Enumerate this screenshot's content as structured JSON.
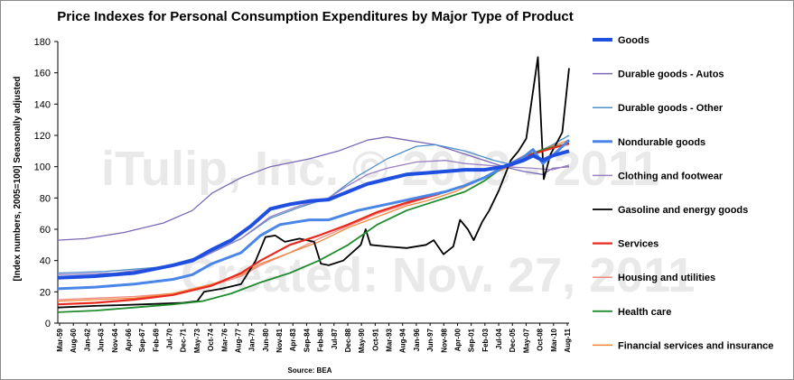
{
  "watermark": {
    "line1": "iTulip, Inc. © 2003 - 2011",
    "line2": "Created: Nov. 27, 2011"
  },
  "chart_data": {
    "type": "line",
    "title": "Price Indexes for Personal Consumption Expenditures by Major Type of Product",
    "ylabel": "[Index numbers, 2005=100] Seasonally adjusted",
    "xlabel": "",
    "source": "Source: BEA",
    "ylim": [
      0,
      180
    ],
    "yticks": [
      0,
      20,
      40,
      60,
      80,
      100,
      120,
      140,
      160,
      180
    ],
    "xlim": [
      1959.17,
      2011.7
    ],
    "xtick_labels": [
      "Mar-59",
      "Aug-60",
      "Jan-62",
      "Jun-63",
      "Nov-64",
      "Apr-66",
      "Sep-67",
      "Feb-69",
      "Jul-70",
      "Dec-71",
      "May-73",
      "Oct-74",
      "Mar-76",
      "Aug-77",
      "Jan-79",
      "Jun-80",
      "Nov-81",
      "Apr-83",
      "Sep-84",
      "Feb-86",
      "Jul-87",
      "Dec-88",
      "May-90",
      "Oct-91",
      "Mar-93",
      "Aug-94",
      "Jan-96",
      "Jun-97",
      "Nov-98",
      "Apr-00",
      "Sep-01",
      "Feb-03",
      "Jul-04",
      "Dec-05",
      "May-07",
      "Oct-08",
      "Mar-10",
      "Aug-11"
    ],
    "grid": false,
    "legend_position": "right",
    "series": [
      {
        "name": "Goods",
        "color": "#1f4fe0",
        "width": 4,
        "points": [
          [
            1959.17,
            29
          ],
          [
            1963,
            30
          ],
          [
            1967,
            32
          ],
          [
            1971,
            37
          ],
          [
            1973,
            40
          ],
          [
            1975,
            47
          ],
          [
            1977,
            53
          ],
          [
            1979,
            62
          ],
          [
            1981,
            73
          ],
          [
            1983,
            76
          ],
          [
            1985,
            78
          ],
          [
            1987,
            79
          ],
          [
            1989,
            84
          ],
          [
            1991,
            89
          ],
          [
            1993,
            92
          ],
          [
            1995,
            95
          ],
          [
            1997,
            96
          ],
          [
            1999,
            97
          ],
          [
            2001,
            98
          ],
          [
            2003,
            98
          ],
          [
            2005,
            100
          ],
          [
            2007,
            104
          ],
          [
            2008,
            107
          ],
          [
            2009,
            104
          ],
          [
            2010,
            107
          ],
          [
            2011.7,
            110
          ]
        ]
      },
      {
        "name": "Durable goods - Autos",
        "color": "#7b68b5",
        "width": 1.3,
        "points": [
          [
            1959.17,
            53
          ],
          [
            1962,
            54
          ],
          [
            1966,
            58
          ],
          [
            1970,
            64
          ],
          [
            1973,
            72
          ],
          [
            1975,
            83
          ],
          [
            1978,
            93
          ],
          [
            1981,
            100
          ],
          [
            1985,
            105
          ],
          [
            1988,
            110
          ],
          [
            1991,
            117
          ],
          [
            1993,
            119
          ],
          [
            1995,
            117
          ],
          [
            1998,
            114
          ],
          [
            2001,
            108
          ],
          [
            2003,
            104
          ],
          [
            2005,
            100
          ],
          [
            2007,
            97
          ],
          [
            2009,
            95
          ],
          [
            2010,
            99
          ],
          [
            2011.7,
            100
          ]
        ]
      },
      {
        "name": "Durable goods - Other",
        "color": "#4f8fc8",
        "width": 1.3,
        "points": [
          [
            1959.17,
            32
          ],
          [
            1964,
            33
          ],
          [
            1970,
            36
          ],
          [
            1974,
            43
          ],
          [
            1978,
            54
          ],
          [
            1981,
            67
          ],
          [
            1984,
            74
          ],
          [
            1987,
            80
          ],
          [
            1990,
            94
          ],
          [
            1993,
            105
          ],
          [
            1996,
            113
          ],
          [
            1998,
            114
          ],
          [
            2001,
            110
          ],
          [
            2004,
            104
          ],
          [
            2006,
            101
          ],
          [
            2008,
            108
          ],
          [
            2010,
            114
          ],
          [
            2011.7,
            120
          ]
        ]
      },
      {
        "name": "Nondurable goods",
        "color": "#4a86e8",
        "width": 3,
        "points": [
          [
            1959.17,
            22
          ],
          [
            1963,
            23
          ],
          [
            1967,
            25
          ],
          [
            1971,
            28
          ],
          [
            1973,
            31
          ],
          [
            1975,
            38
          ],
          [
            1978,
            45
          ],
          [
            1980,
            56
          ],
          [
            1982,
            63
          ],
          [
            1985,
            66
          ],
          [
            1987,
            66
          ],
          [
            1990,
            72
          ],
          [
            1993,
            76
          ],
          [
            1996,
            80
          ],
          [
            1999,
            84
          ],
          [
            2001,
            88
          ],
          [
            2003,
            93
          ],
          [
            2005,
            100
          ],
          [
            2007,
            106
          ],
          [
            2008,
            111
          ],
          [
            2009,
            102
          ],
          [
            2010,
            107
          ],
          [
            2011.7,
            117
          ]
        ]
      },
      {
        "name": "Clothing and footwear",
        "color": "#9a80c4",
        "width": 1.3,
        "points": [
          [
            1959.17,
            31
          ],
          [
            1965,
            32
          ],
          [
            1970,
            36
          ],
          [
            1974,
            42
          ],
          [
            1978,
            54
          ],
          [
            1981,
            68
          ],
          [
            1984,
            75
          ],
          [
            1987,
            80
          ],
          [
            1989,
            88
          ],
          [
            1991,
            95
          ],
          [
            1993,
            99
          ],
          [
            1996,
            103
          ],
          [
            1999,
            104
          ],
          [
            2001,
            102
          ],
          [
            2003,
            101
          ],
          [
            2005,
            100
          ],
          [
            2008,
            99
          ],
          [
            2010,
            98
          ],
          [
            2011.7,
            101
          ]
        ]
      },
      {
        "name": "Gasoline and energy goods",
        "color": "#000000",
        "width": 1.8,
        "points": [
          [
            1959.17,
            10
          ],
          [
            1963,
            11
          ],
          [
            1968,
            12
          ],
          [
            1972,
            13
          ],
          [
            1973.5,
            14
          ],
          [
            1974.2,
            20
          ],
          [
            1976,
            22
          ],
          [
            1978,
            25
          ],
          [
            1979.5,
            40
          ],
          [
            1980.5,
            55
          ],
          [
            1981.5,
            56
          ],
          [
            1982.5,
            52
          ],
          [
            1984,
            54
          ],
          [
            1985.5,
            52
          ],
          [
            1986.2,
            38
          ],
          [
            1987,
            37
          ],
          [
            1988.5,
            40
          ],
          [
            1990.3,
            50
          ],
          [
            1990.8,
            60
          ],
          [
            1991.3,
            50
          ],
          [
            1993,
            49
          ],
          [
            1995,
            48
          ],
          [
            1997,
            50
          ],
          [
            1997.8,
            53
          ],
          [
            1998.8,
            44
          ],
          [
            1999.8,
            49
          ],
          [
            2000.5,
            66
          ],
          [
            2001.3,
            60
          ],
          [
            2001.9,
            53
          ],
          [
            2002.8,
            65
          ],
          [
            2003.5,
            72
          ],
          [
            2004.5,
            85
          ],
          [
            2005.7,
            104
          ],
          [
            2006.5,
            110
          ],
          [
            2007.3,
            118
          ],
          [
            2008.5,
            170
          ],
          [
            2009.1,
            92
          ],
          [
            2009.8,
            108
          ],
          [
            2010.5,
            116
          ],
          [
            2011,
            122
          ],
          [
            2011.7,
            163
          ]
        ]
      },
      {
        "name": "Services",
        "color": "#e8291f",
        "width": 2.2,
        "points": [
          [
            1959.17,
            12
          ],
          [
            1963,
            13
          ],
          [
            1967,
            15
          ],
          [
            1971,
            18
          ],
          [
            1975,
            24
          ],
          [
            1978,
            32
          ],
          [
            1980,
            40
          ],
          [
            1983,
            50
          ],
          [
            1986,
            56
          ],
          [
            1989,
            63
          ],
          [
            1992,
            71
          ],
          [
            1995,
            77
          ],
          [
            1998,
            82
          ],
          [
            2001,
            88
          ],
          [
            2003,
            93
          ],
          [
            2005,
            100
          ],
          [
            2007,
            106
          ],
          [
            2009,
            110
          ],
          [
            2011.7,
            115
          ]
        ]
      },
      {
        "name": "Housing and utilities",
        "color": "#f08a82",
        "width": 1.3,
        "points": [
          [
            1959.17,
            15
          ],
          [
            1963,
            16
          ],
          [
            1967,
            17
          ],
          [
            1971,
            19
          ],
          [
            1975,
            24
          ],
          [
            1978,
            30
          ],
          [
            1980,
            37
          ],
          [
            1983,
            45
          ],
          [
            1986,
            54
          ],
          [
            1989,
            62
          ],
          [
            1992,
            70
          ],
          [
            1995,
            76
          ],
          [
            1998,
            82
          ],
          [
            2001,
            88
          ],
          [
            2003,
            93
          ],
          [
            2005,
            100
          ],
          [
            2007,
            107
          ],
          [
            2009,
            111
          ],
          [
            2011.7,
            114
          ]
        ]
      },
      {
        "name": "Health care",
        "color": "#1f8c2e",
        "width": 1.8,
        "points": [
          [
            1959.17,
            7
          ],
          [
            1963,
            8
          ],
          [
            1967,
            10
          ],
          [
            1971,
            12
          ],
          [
            1974,
            14
          ],
          [
            1977,
            19
          ],
          [
            1980,
            26
          ],
          [
            1983,
            32
          ],
          [
            1986,
            40
          ],
          [
            1989,
            50
          ],
          [
            1992,
            63
          ],
          [
            1995,
            72
          ],
          [
            1998,
            78
          ],
          [
            2001,
            84
          ],
          [
            2003,
            91
          ],
          [
            2005,
            100
          ],
          [
            2007,
            106
          ],
          [
            2009,
            111
          ],
          [
            2011.7,
            115
          ]
        ]
      },
      {
        "name": "Financial services and insurance",
        "color": "#f0883c",
        "width": 1.3,
        "points": [
          [
            1959.17,
            14
          ],
          [
            1963,
            15
          ],
          [
            1967,
            16
          ],
          [
            1971,
            19
          ],
          [
            1975,
            25
          ],
          [
            1978,
            31
          ],
          [
            1980,
            38
          ],
          [
            1983,
            45
          ],
          [
            1986,
            52
          ],
          [
            1989,
            61
          ],
          [
            1992,
            68
          ],
          [
            1995,
            75
          ],
          [
            1997,
            78
          ],
          [
            2000,
            84
          ],
          [
            2002,
            90
          ],
          [
            2004,
            96
          ],
          [
            2006,
            101
          ],
          [
            2008,
            109
          ],
          [
            2009,
            111
          ],
          [
            2011.7,
            117
          ]
        ]
      }
    ]
  }
}
